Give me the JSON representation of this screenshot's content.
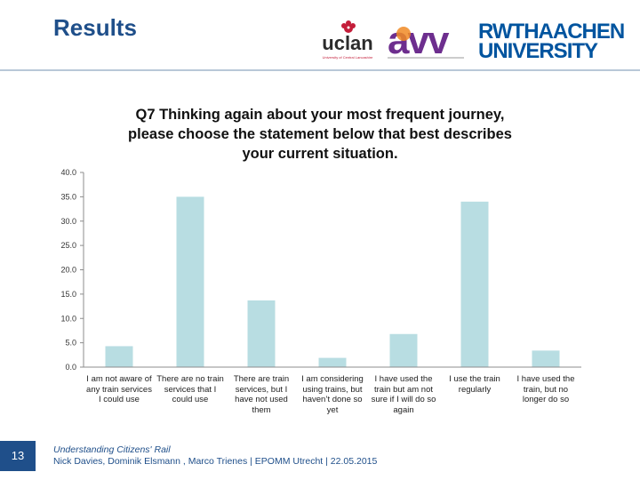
{
  "header": {
    "title": "Results"
  },
  "logos": {
    "uclan_text": "uclan",
    "uclan_sub": "University of Central Lancashire",
    "avv_text": "avv",
    "rwth_line1": "RWTHAACHEN",
    "rwth_line2": "UNIVERSITY"
  },
  "colors": {
    "bar": "#b8dde2",
    "title": "#1f4f8a",
    "grid": "#d9d9d9"
  },
  "chart_data": {
    "type": "bar",
    "title": "Q7 Thinking again about your most frequent journey, please choose the statement below that best describes your current situation.",
    "title_lines": [
      "Q7 Thinking again about your most frequent journey,",
      "please choose the statement below that best describes",
      "your current situation."
    ],
    "categories": [
      "I am not aware of any train services I could use",
      "There are no train services that I could use",
      "There are train services, but I have not used them",
      "I am considering using trains, but haven't done so yet",
      "I have used the train but am not sure if I will do so again",
      "I use the train regularly",
      "I have used the train, but no longer do so"
    ],
    "category_lines": [
      [
        "I am not aware of",
        "any train services",
        "I could use"
      ],
      [
        "There are no train",
        "services that I",
        "could use"
      ],
      [
        "There are train",
        "services, but I",
        "have not used",
        "them"
      ],
      [
        "I am considering",
        "using trains, but",
        "haven’t done so",
        "yet"
      ],
      [
        "I have used the",
        "train but am not",
        "sure if I will do so",
        "again"
      ],
      [
        "I use the train",
        "regularly"
      ],
      [
        "I have used the",
        "train, but no",
        "longer do so"
      ]
    ],
    "values": [
      4.3,
      35.0,
      13.7,
      1.9,
      6.8,
      34.0,
      3.4
    ],
    "ylim": [
      0,
      40
    ],
    "yticks": [
      0,
      5,
      10,
      15,
      20,
      25,
      30,
      35,
      40
    ],
    "ytick_labels": [
      "0.0",
      "5.0",
      "10.0",
      "15.0",
      "20.0",
      "25.0",
      "30.0",
      "35.0",
      "40.0"
    ],
    "xlabel": "",
    "ylabel": ""
  },
  "footer": {
    "page_number": "13",
    "line1": "Understanding Citizens' Rail",
    "line2": "Nick Davies, Dominik Elsmann , Marco Trienes | EPOMM Utrecht | 22.05.2015"
  }
}
